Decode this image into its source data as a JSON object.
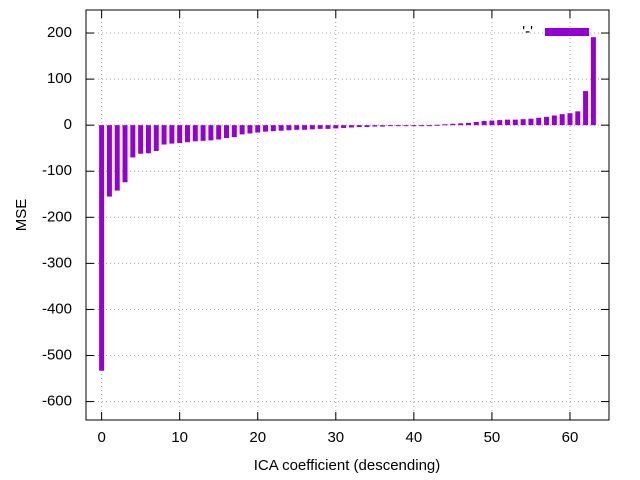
{
  "chart_data": {
    "type": "bar",
    "xlabel": "ICA coefficient (descending)",
    "ylabel": "MSE",
    "x": [
      0,
      1,
      2,
      3,
      4,
      5,
      6,
      7,
      8,
      9,
      10,
      11,
      12,
      13,
      14,
      15,
      16,
      17,
      18,
      19,
      20,
      21,
      22,
      23,
      24,
      25,
      26,
      27,
      28,
      29,
      30,
      31,
      32,
      33,
      34,
      35,
      36,
      37,
      38,
      39,
      40,
      41,
      42,
      43,
      44,
      45,
      46,
      47,
      48,
      49,
      50,
      51,
      52,
      53,
      54,
      55,
      56,
      57,
      58,
      59,
      60,
      61,
      62,
      63
    ],
    "series": [
      {
        "name": "'-'",
        "color": "#9400d3",
        "values": [
          -533,
          -155,
          -142,
          -124,
          -70,
          -62,
          -61,
          -56,
          -42,
          -40,
          -39,
          -37,
          -35,
          -34,
          -33,
          -31,
          -28,
          -26,
          -20,
          -18,
          -16,
          -14,
          -13,
          -12,
          -11,
          -10,
          -10,
          -9,
          -8,
          -8,
          -7,
          -6,
          -5,
          -4,
          -4,
          -3,
          -3,
          -2,
          -2,
          -1,
          -1,
          0,
          0,
          1,
          2,
          3,
          4,
          5,
          7,
          9,
          10,
          11,
          12,
          12,
          13,
          14,
          16,
          18,
          21,
          24,
          26,
          30,
          74,
          191
        ]
      }
    ],
    "xlim": [
      -2,
      65
    ],
    "ylim": [
      -640,
      250
    ],
    "xticks": [
      0,
      10,
      20,
      30,
      40,
      50,
      60
    ],
    "yticks": [
      -600,
      -500,
      -400,
      -300,
      -200,
      -100,
      0,
      100,
      200
    ],
    "grid": true,
    "legend": "top-right"
  }
}
